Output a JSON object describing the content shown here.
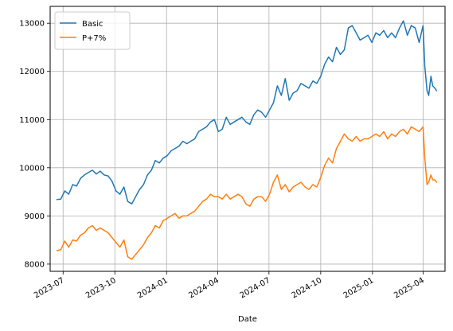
{
  "chart_data": {
    "type": "line",
    "title": "",
    "xlabel": "Date",
    "ylabel": "",
    "grid": true,
    "legend_position": "top-left",
    "x_range": [
      "2023-06-08",
      "2025-05-10"
    ],
    "ylim": [
      7850,
      13350
    ],
    "x_ticks": [
      {
        "date": "2023-07-01",
        "label": "2023-07"
      },
      {
        "date": "2023-10-01",
        "label": "2023-10"
      },
      {
        "date": "2024-01-01",
        "label": "2024-01"
      },
      {
        "date": "2024-04-01",
        "label": "2024-04"
      },
      {
        "date": "2024-07-01",
        "label": "2024-07"
      },
      {
        "date": "2024-10-01",
        "label": "2024-10"
      },
      {
        "date": "2025-01-01",
        "label": "2025-01"
      },
      {
        "date": "2025-04-01",
        "label": "2025-04"
      }
    ],
    "y_ticks": [
      8000,
      9000,
      10000,
      11000,
      12000,
      13000
    ],
    "x": [
      "2023-06-20",
      "2023-06-27",
      "2023-07-04",
      "2023-07-11",
      "2023-07-18",
      "2023-07-25",
      "2023-08-01",
      "2023-08-08",
      "2023-08-15",
      "2023-08-22",
      "2023-08-29",
      "2023-09-05",
      "2023-09-12",
      "2023-09-19",
      "2023-09-26",
      "2023-10-03",
      "2023-10-10",
      "2023-10-17",
      "2023-10-24",
      "2023-10-31",
      "2023-11-07",
      "2023-11-14",
      "2023-11-21",
      "2023-11-28",
      "2023-12-05",
      "2023-12-12",
      "2023-12-19",
      "2023-12-26",
      "2024-01-02",
      "2024-01-09",
      "2024-01-16",
      "2024-01-23",
      "2024-01-30",
      "2024-02-06",
      "2024-02-13",
      "2024-02-20",
      "2024-02-27",
      "2024-03-05",
      "2024-03-12",
      "2024-03-19",
      "2024-03-26",
      "2024-04-02",
      "2024-04-09",
      "2024-04-16",
      "2024-04-23",
      "2024-04-30",
      "2024-05-07",
      "2024-05-14",
      "2024-05-21",
      "2024-05-28",
      "2024-06-04",
      "2024-06-11",
      "2024-06-18",
      "2024-06-25",
      "2024-07-02",
      "2024-07-09",
      "2024-07-16",
      "2024-07-23",
      "2024-07-30",
      "2024-08-06",
      "2024-08-13",
      "2024-08-20",
      "2024-08-27",
      "2024-09-03",
      "2024-09-10",
      "2024-09-17",
      "2024-09-24",
      "2024-10-01",
      "2024-10-08",
      "2024-10-15",
      "2024-10-22",
      "2024-10-29",
      "2024-11-05",
      "2024-11-12",
      "2024-11-19",
      "2024-11-26",
      "2024-12-03",
      "2024-12-10",
      "2024-12-17",
      "2024-12-24",
      "2024-12-31",
      "2025-01-07",
      "2025-01-14",
      "2025-01-21",
      "2025-01-28",
      "2025-02-04",
      "2025-02-11",
      "2025-02-18",
      "2025-02-25",
      "2025-03-04",
      "2025-03-11",
      "2025-03-18",
      "2025-03-25",
      "2025-04-01",
      "2025-04-04",
      "2025-04-08",
      "2025-04-11",
      "2025-04-15",
      "2025-04-18",
      "2025-04-22",
      "2025-04-25"
    ],
    "series": [
      {
        "name": "Basic",
        "color": "#1f77b4",
        "values": [
          9340,
          9350,
          9520,
          9450,
          9650,
          9620,
          9780,
          9850,
          9900,
          9950,
          9870,
          9930,
          9850,
          9830,
          9720,
          9520,
          9450,
          9600,
          9300,
          9250,
          9400,
          9550,
          9650,
          9850,
          9950,
          10150,
          10100,
          10200,
          10250,
          10350,
          10400,
          10450,
          10550,
          10500,
          10550,
          10600,
          10750,
          10800,
          10850,
          10950,
          11000,
          10750,
          10800,
          11050,
          10900,
          10950,
          11000,
          11050,
          10950,
          10900,
          11100,
          11200,
          11150,
          11050,
          11200,
          11350,
          11700,
          11500,
          11850,
          11400,
          11550,
          11600,
          11750,
          11700,
          11650,
          11800,
          11750,
          11900,
          12150,
          12300,
          12200,
          12500,
          12350,
          12450,
          12900,
          12950,
          12800,
          12650,
          12700,
          12750,
          12600,
          12800,
          12750,
          12850,
          12700,
          12800,
          12700,
          12900,
          13050,
          12750,
          12950,
          12900,
          12600,
          12950,
          12100,
          11600,
          11500,
          11900,
          11700,
          11650,
          11600
        ]
      },
      {
        "name": "P+7%",
        "color": "#ff7f0e",
        "values": [
          8280,
          8300,
          8480,
          8350,
          8500,
          8480,
          8600,
          8650,
          8750,
          8800,
          8700,
          8750,
          8700,
          8650,
          8550,
          8450,
          8350,
          8500,
          8150,
          8100,
          8200,
          8300,
          8400,
          8550,
          8650,
          8800,
          8750,
          8900,
          8950,
          9000,
          9050,
          8950,
          9000,
          9000,
          9050,
          9100,
          9200,
          9300,
          9350,
          9450,
          9400,
          9400,
          9350,
          9450,
          9350,
          9400,
          9450,
          9400,
          9250,
          9200,
          9350,
          9400,
          9400,
          9300,
          9450,
          9700,
          9850,
          9550,
          9650,
          9500,
          9600,
          9650,
          9700,
          9600,
          9550,
          9650,
          9600,
          9800,
          10050,
          10200,
          10100,
          10400,
          10550,
          10700,
          10600,
          10550,
          10650,
          10550,
          10600,
          10600,
          10650,
          10700,
          10650,
          10750,
          10600,
          10700,
          10650,
          10750,
          10800,
          10700,
          10850,
          10800,
          10750,
          10850,
          10200,
          9650,
          9700,
          9850,
          9750,
          9750,
          9700
        ]
      }
    ]
  }
}
